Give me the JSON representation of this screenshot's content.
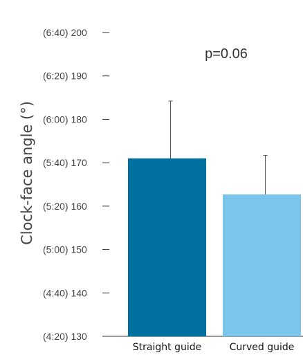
{
  "chart_data": {
    "type": "bar",
    "title": "",
    "xlabel": "",
    "ylabel": "Clock-face angle (°)",
    "ylim": [
      130,
      200
    ],
    "y_ticks": [
      {
        "value": 200,
        "label": "(6:40) 200"
      },
      {
        "value": 190,
        "label": "(6:20) 190"
      },
      {
        "value": 180,
        "label": "(6:00) 180"
      },
      {
        "value": 170,
        "label": "(5:40) 170"
      },
      {
        "value": 160,
        "label": "(5:20) 160"
      },
      {
        "value": 150,
        "label": "(5:00) 150"
      },
      {
        "value": 140,
        "label": "(4:40) 140"
      },
      {
        "value": 130,
        "label": "(4:20) 130"
      }
    ],
    "categories": [
      "Straight guide",
      "Curved guide"
    ],
    "values": [
      171,
      162.7
    ],
    "error_upper": [
      184.2,
      171.7
    ],
    "colors": [
      "#00709e",
      "#7bc4ec"
    ],
    "annotation": "p=0.06",
    "grid": false
  }
}
